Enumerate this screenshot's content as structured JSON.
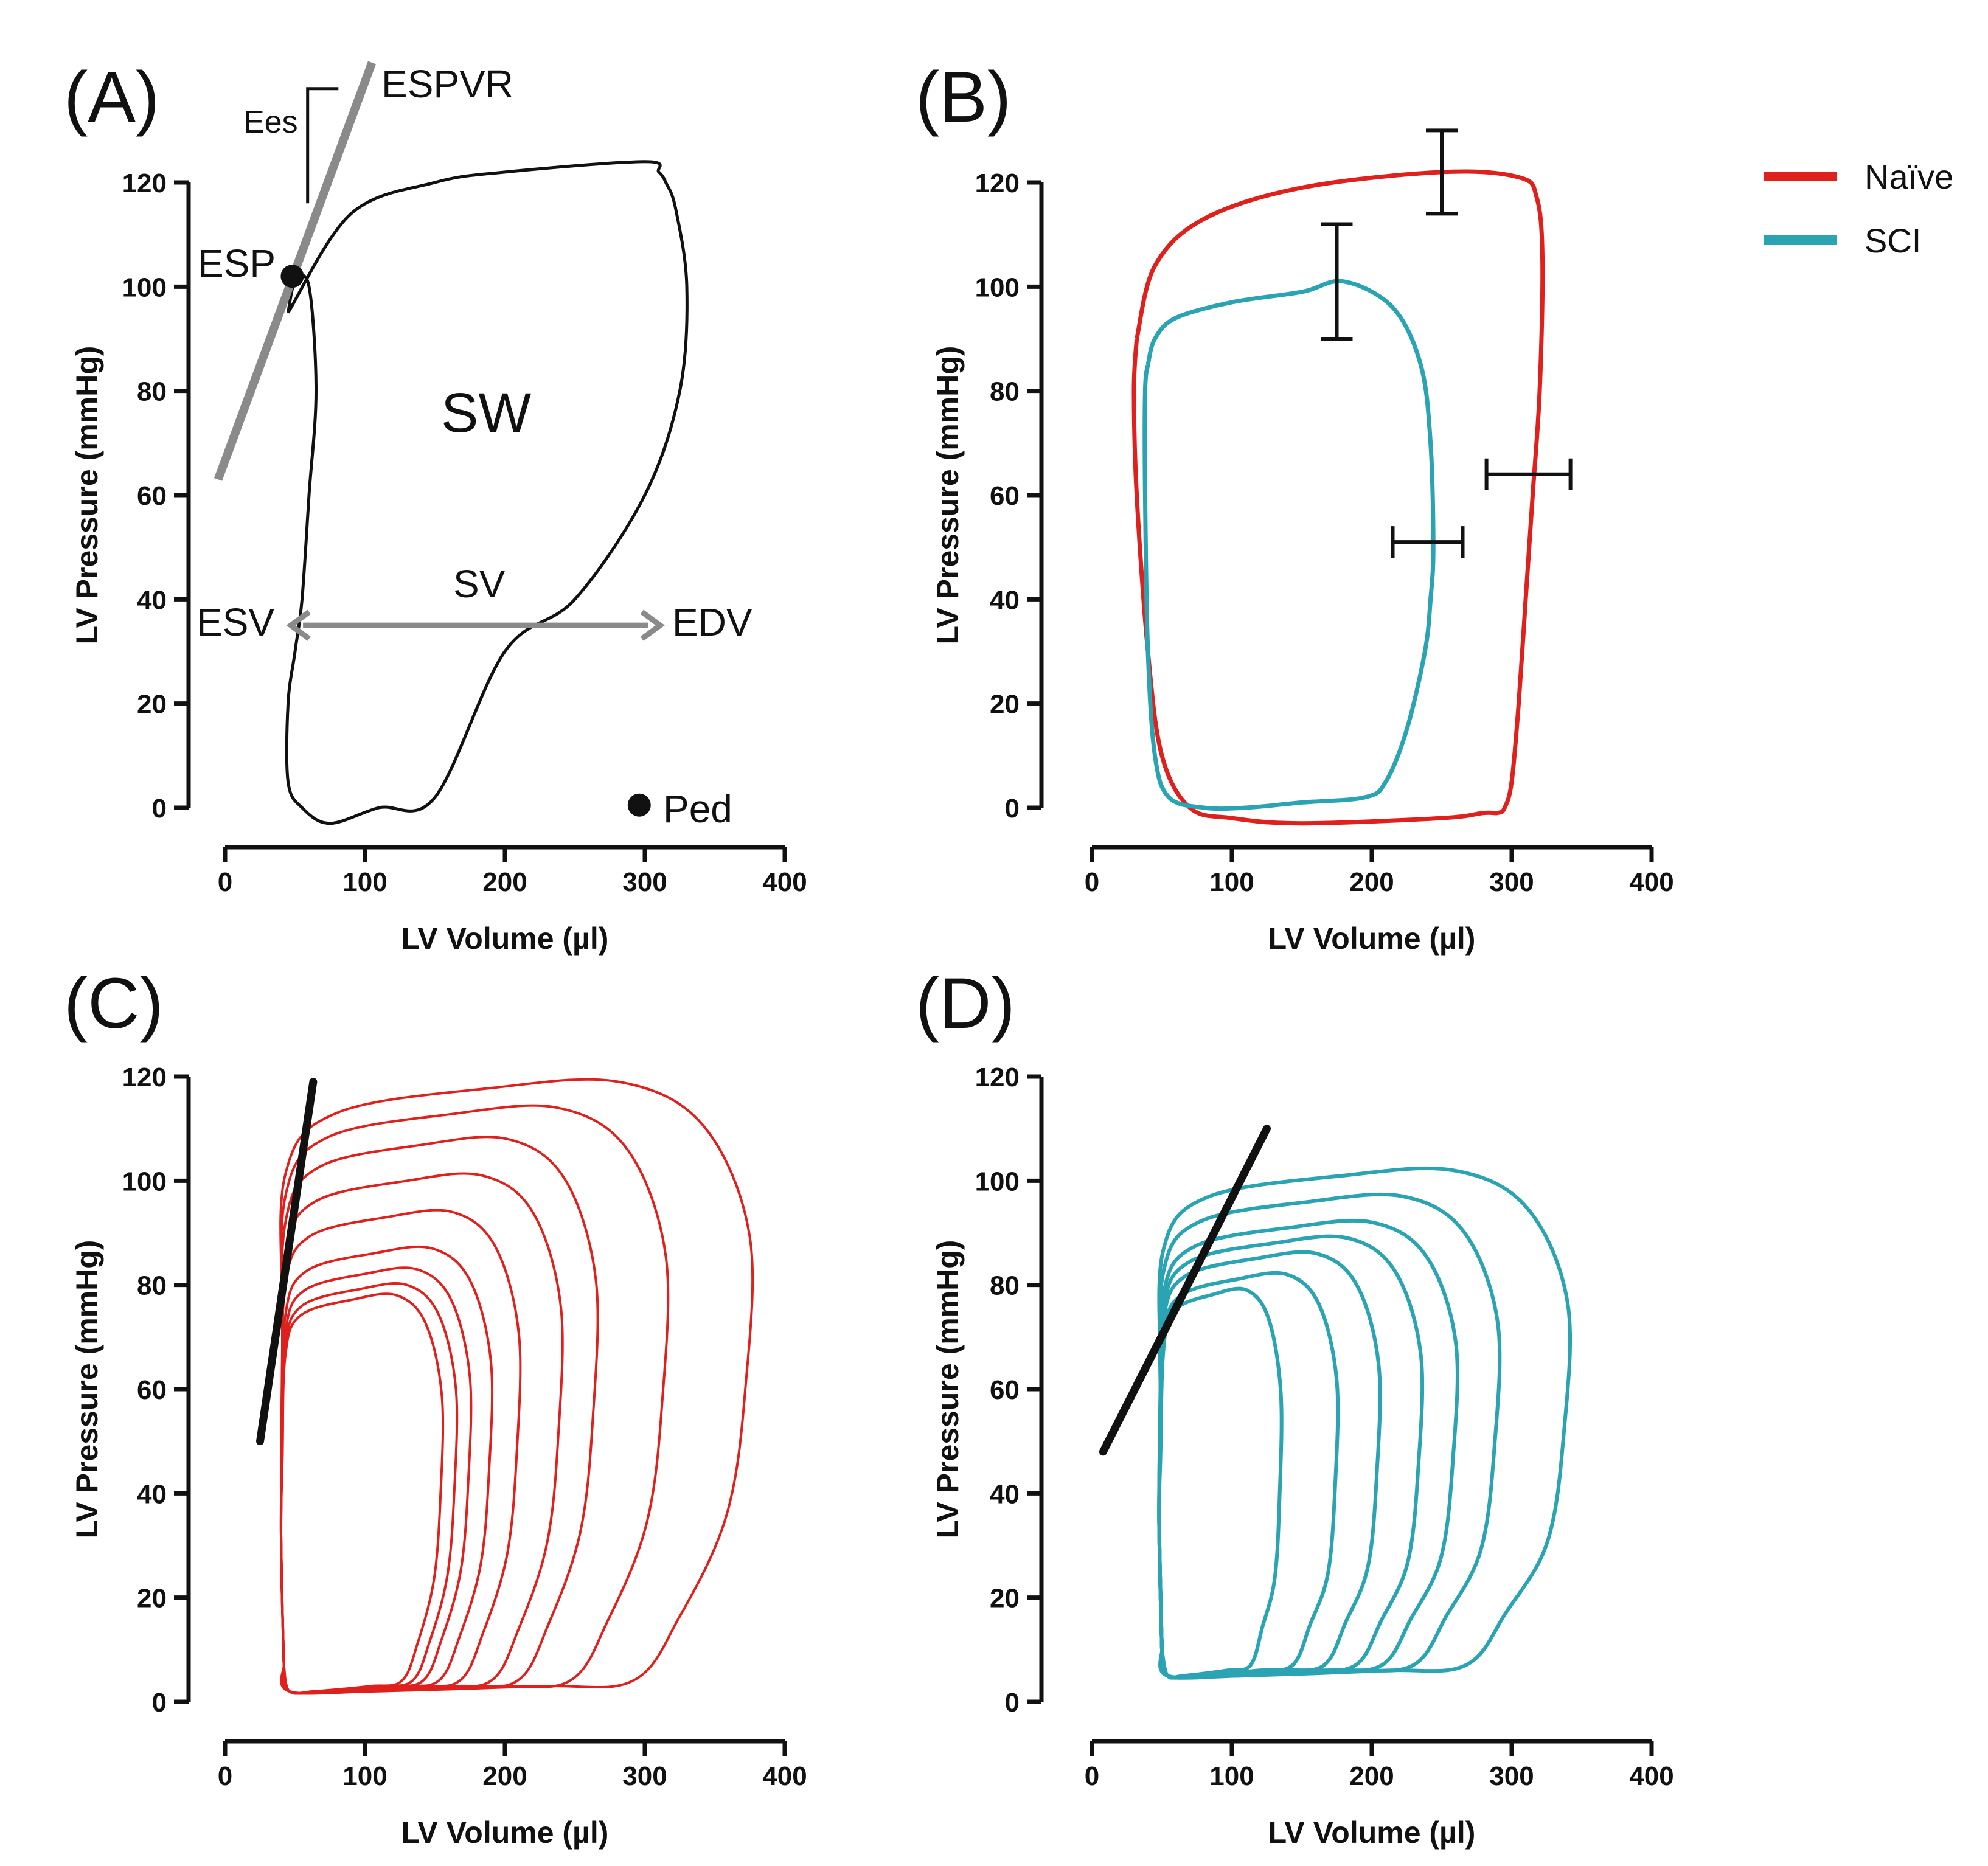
{
  "colors": {
    "naive": "#e0201c",
    "sci": "#2aa3b3",
    "black": "#111111",
    "gray": "#8a8a8a"
  },
  "legend": [
    {
      "label": "Naïve",
      "color": "#e0201c"
    },
    {
      "label": "SCI",
      "color": "#2aa3b3"
    }
  ],
  "chart_data": [
    {
      "id": "A",
      "panel_label": "(A)",
      "type": "line",
      "xlabel": "LV Volume (µl)",
      "ylabel": "LV Pressure (mmHg)",
      "xlim": [
        0,
        400
      ],
      "ylim": [
        0,
        120
      ],
      "xticks": [
        "0",
        "100",
        "200",
        "300",
        "400"
      ],
      "yticks": [
        "0",
        "20",
        "40",
        "60",
        "80",
        "100",
        "120"
      ],
      "series": [
        {
          "color": "#111111",
          "x": [
            45,
            90,
            150,
            200,
            300,
            310,
            315,
            322,
            330,
            325,
            300,
            250,
            200,
            150,
            110,
            75,
            55,
            45,
            45,
            50,
            55,
            60,
            65,
            60,
            50,
            45
          ],
          "y": [
            95,
            114,
            120,
            122,
            124,
            122,
            120,
            115,
            100,
            80,
            60,
            40,
            30,
            2,
            0,
            -3,
            0,
            5,
            20,
            30,
            40,
            60,
            80,
            100,
            101,
            95
          ]
        }
      ],
      "espvr_line": {
        "x": [
          -5,
          105
        ],
        "y": [
          63,
          143
        ]
      },
      "points": [
        {
          "label": "ESP",
          "x": 48,
          "y": 102
        },
        {
          "label": "Ped",
          "x": 296,
          "y": 0.5
        }
      ],
      "annotations": {
        "espvr": "ESPVR",
        "ees": "Ees",
        "sw": "SW",
        "sv": "SV",
        "esv": "ESV",
        "edv": "EDV",
        "esp": "ESP",
        "ped": "Ped"
      },
      "sv_arrow": {
        "x": [
          47,
          311
        ],
        "y": 35
      }
    },
    {
      "id": "B",
      "panel_label": "(B)",
      "type": "line",
      "xlabel": "LV Volume (µl)",
      "ylabel": "LV Pressure (mmHg)",
      "xlim": [
        0,
        400
      ],
      "ylim": [
        0,
        120
      ],
      "xticks": [
        "0",
        "100",
        "200",
        "300",
        "400"
      ],
      "yticks": [
        "0",
        "20",
        "40",
        "60",
        "80",
        "100",
        "120"
      ],
      "series": [
        {
          "name": "Naïve",
          "color": "#e0201c",
          "x": [
            32,
            45,
            80,
            150,
            250,
            305,
            318,
            322,
            320,
            315,
            310,
            305,
            300,
            295,
            290,
            280,
            250,
            150,
            100,
            70,
            50,
            40,
            32,
            30,
            32
          ],
          "y": [
            90,
            104,
            113,
            119,
            122,
            121,
            117,
            105,
            80,
            60,
            40,
            20,
            5,
            0,
            -1,
            -1,
            -2,
            -3,
            -2,
            0,
            10,
            30,
            60,
            80,
            90
          ]
        },
        {
          "name": "SCI",
          "color": "#2aa3b3",
          "x": [
            40,
            45,
            60,
            100,
            150,
            180,
            215,
            235,
            242,
            244,
            242,
            238,
            225,
            210,
            195,
            150,
            110,
            80,
            55,
            45,
            40,
            38,
            38,
            40
          ],
          "y": [
            85,
            90,
            94,
            97,
            99,
            101,
            96,
            85,
            70,
            50,
            40,
            30,
            15,
            5,
            2,
            1,
            0,
            0,
            2,
            10,
            30,
            60,
            80,
            85
          ]
        }
      ],
      "error_bars": [
        {
          "x": 250,
          "y": 122,
          "y_err": [
            114,
            130
          ]
        },
        {
          "x": 175,
          "y": 101,
          "y_err": [
            90,
            112
          ]
        },
        {
          "x": 312,
          "y": 64,
          "x_err": [
            282,
            342
          ]
        },
        {
          "x": 240,
          "y": 51,
          "x_err": [
            215,
            265
          ]
        }
      ]
    },
    {
      "id": "C",
      "panel_label": "(C)",
      "type": "line",
      "xlabel": "LV Volume (µl)",
      "ylabel": "LV Pressure (mmHg)",
      "xlim": [
        0,
        400
      ],
      "ylim": [
        0,
        120
      ],
      "xticks": [
        "0",
        "100",
        "200",
        "300",
        "400"
      ],
      "yticks": [
        "0",
        "20",
        "40",
        "60",
        "80",
        "100",
        "120"
      ],
      "color": "#e0201c",
      "loops": [
        {
          "edv": 375,
          "esp": 119,
          "rx": 1,
          "ry": 1
        },
        {
          "edv": 315,
          "esp": 114,
          "rx": 1,
          "ry": 1
        },
        {
          "edv": 265,
          "esp": 108,
          "rx": 1,
          "ry": 1
        },
        {
          "edv": 240,
          "esp": 101,
          "rx": 1,
          "ry": 1
        },
        {
          "edv": 210,
          "esp": 94,
          "rx": 1,
          "ry": 1
        },
        {
          "edv": 190,
          "esp": 87,
          "rx": 1,
          "ry": 1
        },
        {
          "edv": 175,
          "esp": 83,
          "rx": 1,
          "ry": 1
        },
        {
          "edv": 165,
          "esp": 80,
          "rx": 1,
          "ry": 1
        },
        {
          "edv": 155,
          "esp": 78,
          "rx": 1,
          "ry": 1
        }
      ],
      "esv": 40,
      "ped": 2,
      "espvr_line": {
        "x": [
          25,
          63
        ],
        "y": [
          50,
          119
        ]
      }
    },
    {
      "id": "D",
      "panel_label": "(D)",
      "type": "line",
      "xlabel": "LV Volume (µl)",
      "ylabel": "LV Pressure (mmHg)",
      "xlim": [
        0,
        400
      ],
      "ylim": [
        0,
        120
      ],
      "xticks": [
        "0",
        "100",
        "200",
        "300",
        "400"
      ],
      "yticks": [
        "0",
        "20",
        "40",
        "60",
        "80",
        "100",
        "120"
      ],
      "color": "#2aa3b3",
      "loops": [
        {
          "edv": 340,
          "esp": 102
        },
        {
          "edv": 290,
          "esp": 97
        },
        {
          "edv": 260,
          "esp": 92
        },
        {
          "edv": 235,
          "esp": 89
        },
        {
          "edv": 205,
          "esp": 86
        },
        {
          "edv": 175,
          "esp": 82
        },
        {
          "edv": 135,
          "esp": 79
        }
      ],
      "esv": 48,
      "ped": 5,
      "espvr_line": {
        "x": [
          8,
          125
        ],
        "y": [
          48,
          110
        ]
      }
    }
  ]
}
